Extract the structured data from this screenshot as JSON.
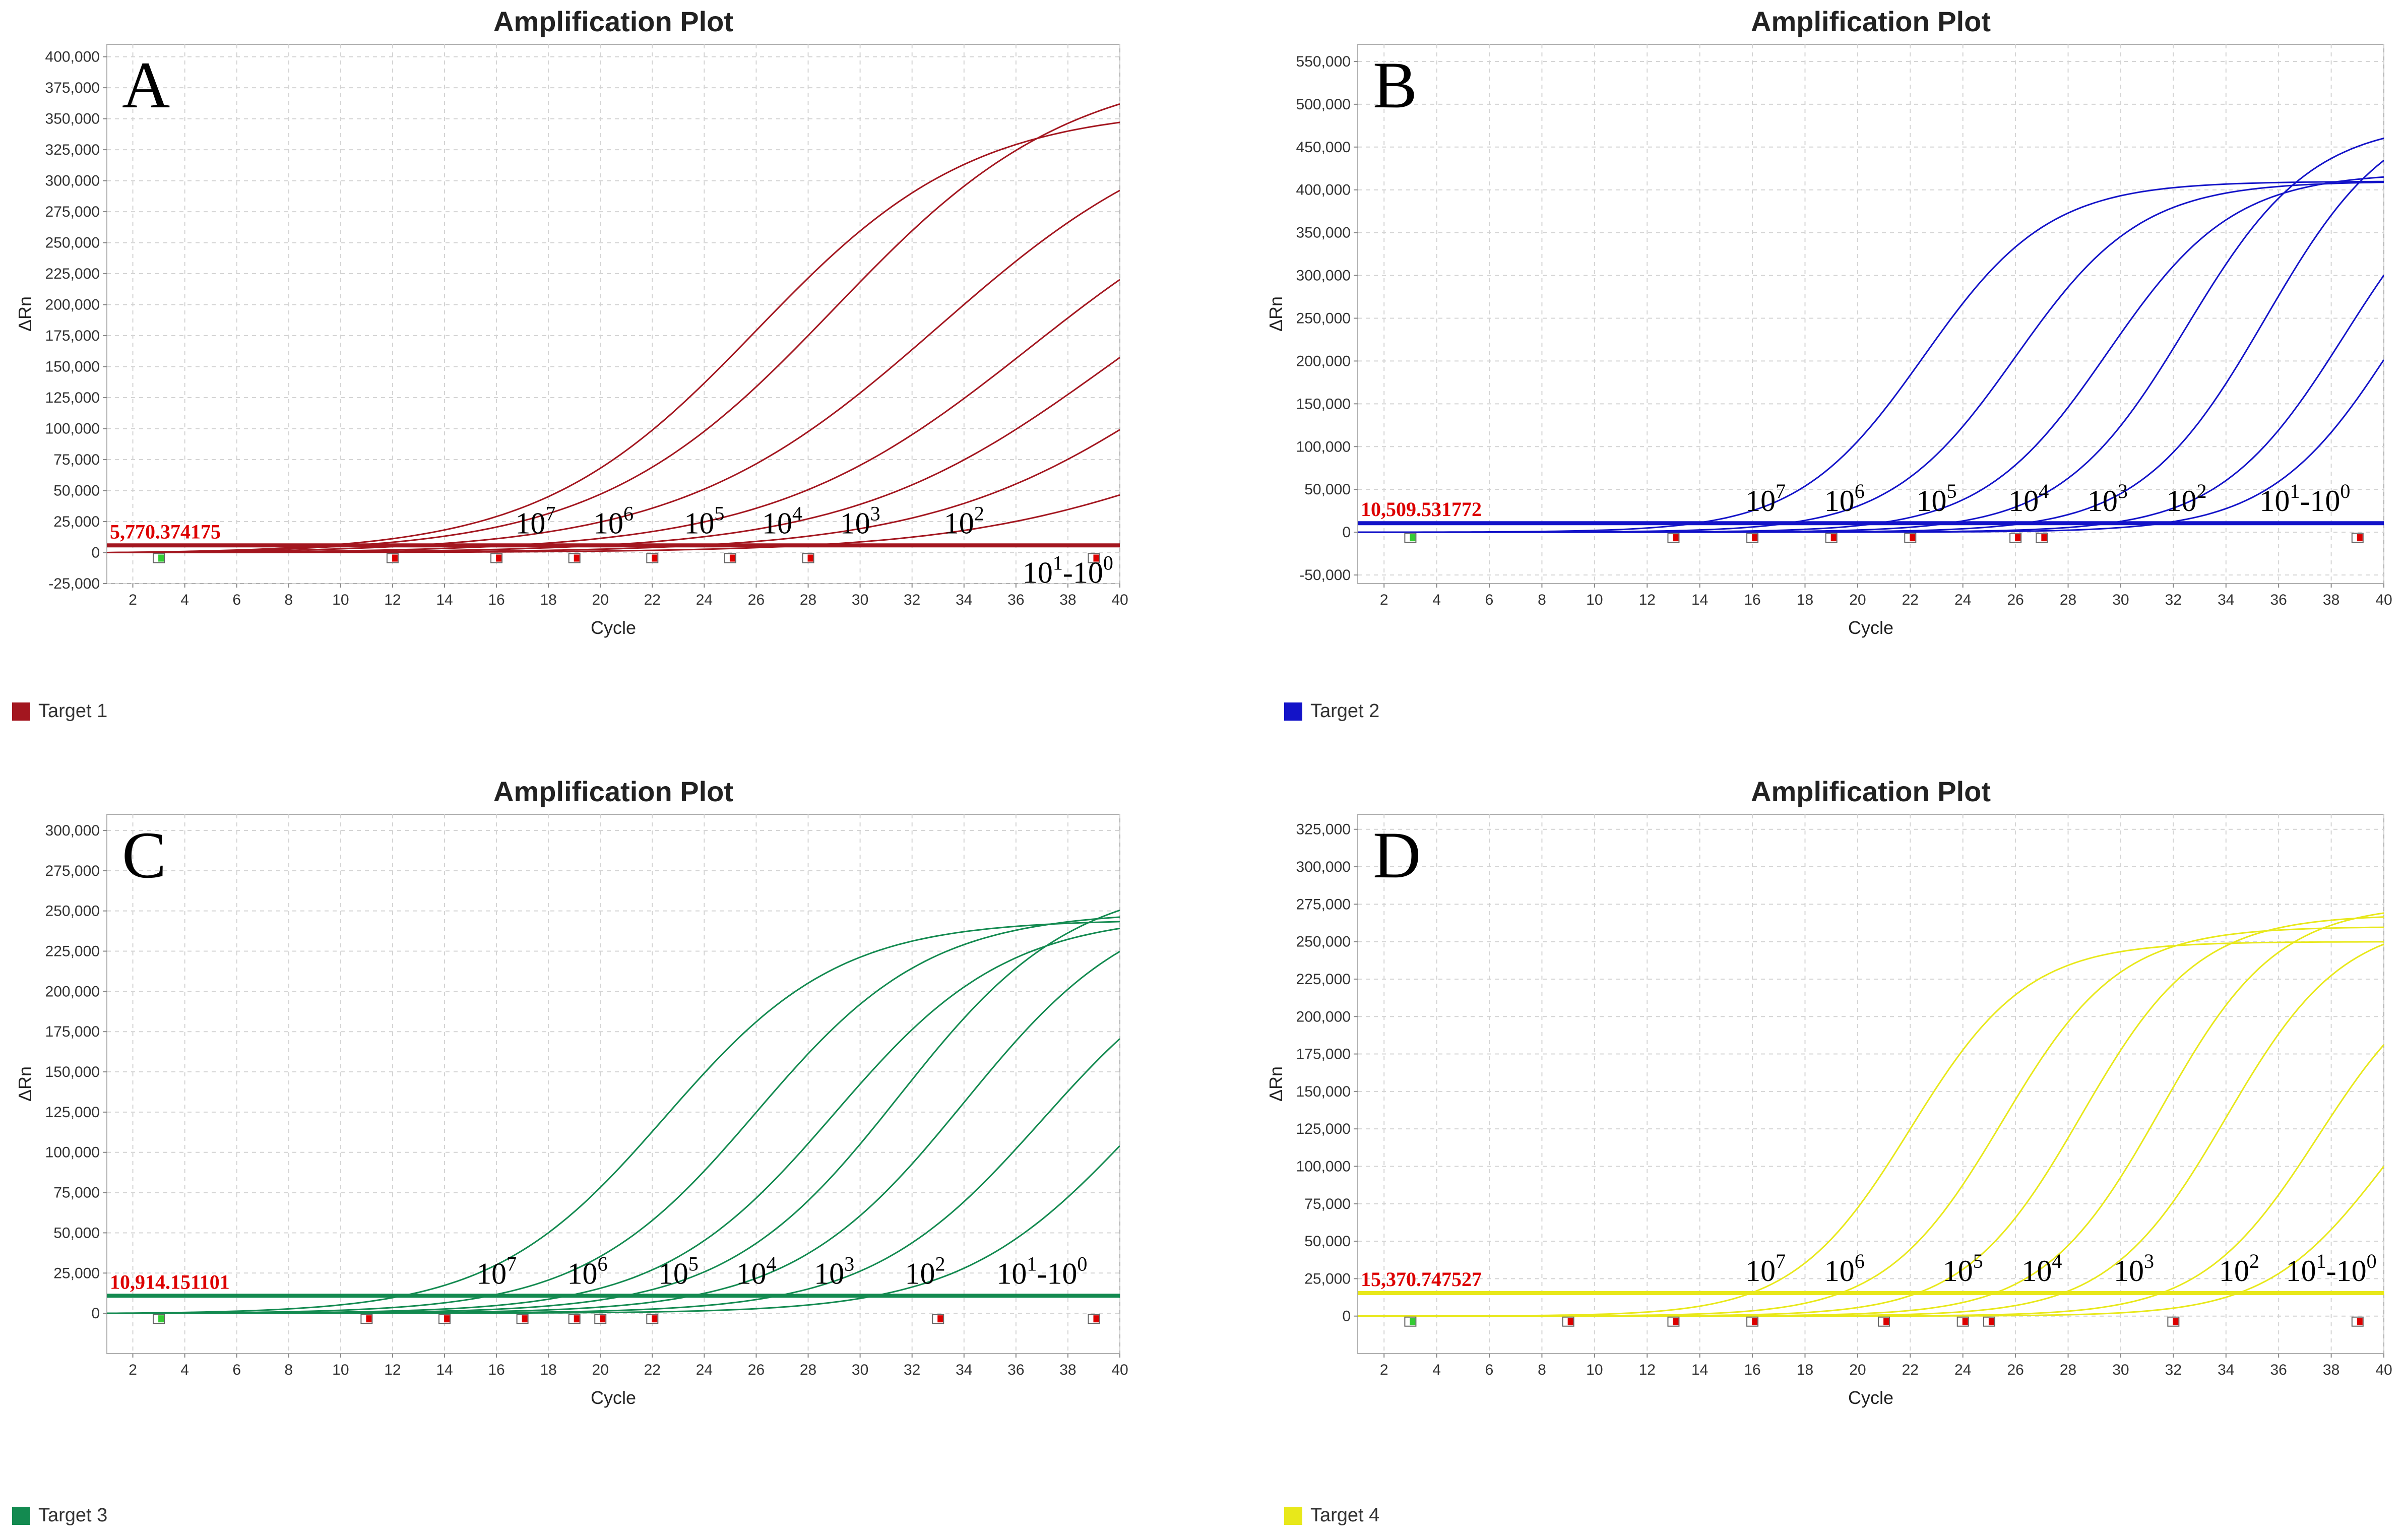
{
  "chart_data": [
    {
      "type": "line",
      "panel_letter": "A",
      "title": "Amplification Plot",
      "xlabel": "Cycle",
      "ylabel": "ΔRn",
      "xlim": [
        1,
        40
      ],
      "ylim": [
        -25000,
        410000
      ],
      "x_ticks": [
        2,
        4,
        6,
        8,
        10,
        12,
        14,
        16,
        18,
        20,
        22,
        24,
        26,
        28,
        30,
        32,
        34,
        36,
        38,
        40
      ],
      "y_ticks": [
        -25000,
        0,
        25000,
        50000,
        75000,
        100000,
        125000,
        150000,
        175000,
        200000,
        225000,
        250000,
        275000,
        300000,
        325000,
        350000,
        375000,
        400000
      ],
      "y_tick_labels": [
        "-25,000",
        "0",
        "25,000",
        "50,000",
        "75,000",
        "100,000",
        "125,000",
        "150,000",
        "175,000",
        "200,000",
        "225,000",
        "250,000",
        "275,000",
        "300,000",
        "325,000",
        "350,000",
        "375,000",
        "400,000"
      ],
      "color": "#a3161f",
      "threshold": 5770.374175,
      "threshold_label": "5,770.374175",
      "legend": "Target 1",
      "series": [
        {
          "name": "10^7",
          "ct": 17.5,
          "plateau": 360000,
          "k": 0.24,
          "mid": 26
        },
        {
          "name": "10^6",
          "ct": 20.5,
          "plateau": 395000,
          "k": 0.22,
          "mid": 29
        },
        {
          "name": "10^5",
          "ct": 24,
          "plateau": 365000,
          "k": 0.2,
          "mid": 33
        },
        {
          "name": "10^4",
          "ct": 27,
          "plateau": 330000,
          "k": 0.2,
          "mid": 36.5
        },
        {
          "name": "10^3",
          "ct": 30,
          "plateau": 300000,
          "k": 0.2,
          "mid": 39.5
        },
        {
          "name": "10^2",
          "ct": 33,
          "plateau": 280000,
          "k": 0.2,
          "mid": 43
        },
        {
          "name": "10^1-10^0",
          "ct": 36,
          "plateau": 150000,
          "k": 0.2,
          "mid": 44
        }
      ],
      "annotations": [
        {
          "base": "10",
          "exp": "7",
          "x": 17.5
        },
        {
          "base": "10",
          "exp": "6",
          "x": 20.5
        },
        {
          "base": "10",
          "exp": "5",
          "x": 24
        },
        {
          "base": "10",
          "exp": "4",
          "x": 27
        },
        {
          "base": "10",
          "exp": "3",
          "x": 30
        },
        {
          "base": "10",
          "exp": "2",
          "x": 34
        },
        {
          "base": "10",
          "exp": "1",
          "base2": "10",
          "exp2": "0",
          "x": 38
        }
      ],
      "markers": [
        {
          "x": 3,
          "color": "#33cc33"
        },
        {
          "x": 12,
          "color": "#dd0000"
        },
        {
          "x": 16,
          "color": "#dd0000"
        },
        {
          "x": 19,
          "color": "#dd0000"
        },
        {
          "x": 22,
          "color": "#dd0000"
        },
        {
          "x": 25,
          "color": "#dd0000"
        },
        {
          "x": 28,
          "color": "#dd0000"
        },
        {
          "x": 39,
          "color": "#dd0000"
        }
      ]
    },
    {
      "type": "line",
      "panel_letter": "B",
      "title": "Amplification Plot",
      "xlabel": "Cycle",
      "ylabel": "ΔRn",
      "xlim": [
        1,
        40
      ],
      "ylim": [
        -60000,
        570000
      ],
      "x_ticks": [
        2,
        4,
        6,
        8,
        10,
        12,
        14,
        16,
        18,
        20,
        22,
        24,
        26,
        28,
        30,
        32,
        34,
        36,
        38,
        40
      ],
      "y_ticks": [
        -50000,
        0,
        50000,
        100000,
        150000,
        200000,
        250000,
        300000,
        350000,
        400000,
        450000,
        500000,
        550000
      ],
      "y_tick_labels": [
        "-50,000",
        "0",
        "50,000",
        "100,000",
        "150,000",
        "200,000",
        "250,000",
        "300,000",
        "350,000",
        "400,000",
        "450,000",
        "500,000",
        "550,000"
      ],
      "color": "#1313c8",
      "threshold": 10509.531772,
      "threshold_label": "10,509.531772",
      "legend": "Target 2",
      "series": [
        {
          "name": "10^7",
          "ct": 18,
          "plateau": 410000,
          "k": 0.42,
          "mid": 22.5
        },
        {
          "name": "10^6",
          "ct": 21,
          "plateau": 410000,
          "k": 0.42,
          "mid": 26
        },
        {
          "name": "10^5",
          "ct": 24.5,
          "plateau": 420000,
          "k": 0.42,
          "mid": 29.5
        },
        {
          "name": "10^4",
          "ct": 27.5,
          "plateau": 480000,
          "k": 0.42,
          "mid": 32.5
        },
        {
          "name": "10^3",
          "ct": 30.5,
          "plateau": 500000,
          "k": 0.42,
          "mid": 35.5
        },
        {
          "name": "10^2",
          "ct": 33.5,
          "plateau": 460000,
          "k": 0.42,
          "mid": 38.5
        },
        {
          "name": "10^1-10^0",
          "ct": 36.5,
          "plateau": 450000,
          "k": 0.42,
          "mid": 40.5
        }
      ],
      "annotations": [
        {
          "base": "10",
          "exp": "7",
          "x": 16.5
        },
        {
          "base": "10",
          "exp": "6",
          "x": 19.5
        },
        {
          "base": "10",
          "exp": "5",
          "x": 23
        },
        {
          "base": "10",
          "exp": "4",
          "x": 26.5
        },
        {
          "base": "10",
          "exp": "3",
          "x": 29.5
        },
        {
          "base": "10",
          "exp": "2",
          "x": 32.5
        },
        {
          "base": "10",
          "exp": "1",
          "base2": "10",
          "exp2": "0",
          "x": 37
        }
      ],
      "markers": [
        {
          "x": 3,
          "color": "#33cc33"
        },
        {
          "x": 13,
          "color": "#dd0000"
        },
        {
          "x": 16,
          "color": "#dd0000"
        },
        {
          "x": 19,
          "color": "#dd0000"
        },
        {
          "x": 22,
          "color": "#dd0000"
        },
        {
          "x": 26,
          "color": "#dd0000"
        },
        {
          "x": 27,
          "color": "#dd0000"
        },
        {
          "x": 39,
          "color": "#dd0000"
        }
      ]
    },
    {
      "type": "line",
      "panel_letter": "C",
      "title": "Amplification Plot",
      "xlabel": "Cycle",
      "ylabel": "ΔRn",
      "xlim": [
        1,
        40
      ],
      "ylim": [
        -25000,
        310000
      ],
      "x_ticks": [
        2,
        4,
        6,
        8,
        10,
        12,
        14,
        16,
        18,
        20,
        22,
        24,
        26,
        28,
        30,
        32,
        34,
        36,
        38,
        40
      ],
      "y_ticks": [
        0,
        25000,
        50000,
        75000,
        100000,
        125000,
        150000,
        175000,
        200000,
        225000,
        250000,
        275000,
        300000
      ],
      "y_tick_labels": [
        "0",
        "25,000",
        "50,000",
        "75,000",
        "100,000",
        "125,000",
        "150,000",
        "175,000",
        "200,000",
        "225,000",
        "250,000",
        "275,000",
        "300,000"
      ],
      "color": "#138a50",
      "threshold": 10914.151101,
      "threshold_label": "10,914.151101",
      "legend": "Target 3",
      "series": [
        {
          "name": "10^7",
          "ct": 17,
          "plateau": 245000,
          "k": 0.3,
          "mid": 22.5
        },
        {
          "name": "10^6",
          "ct": 20,
          "plateau": 250000,
          "k": 0.3,
          "mid": 26
        },
        {
          "name": "10^5",
          "ct": 23,
          "plateau": 248000,
          "k": 0.3,
          "mid": 29
        },
        {
          "name": "10^4",
          "ct": 25.5,
          "plateau": 270000,
          "k": 0.3,
          "mid": 31.5
        },
        {
          "name": "10^3",
          "ct": 28,
          "plateau": 262000,
          "k": 0.3,
          "mid": 34
        },
        {
          "name": "10^2",
          "ct": 31,
          "plateau": 240000,
          "k": 0.3,
          "mid": 37
        },
        {
          "name": "10^1-10^0",
          "ct": 33.5,
          "plateau": 225000,
          "k": 0.3,
          "mid": 40.5
        }
      ],
      "annotations": [
        {
          "base": "10",
          "exp": "7",
          "x": 16
        },
        {
          "base": "10",
          "exp": "6",
          "x": 19.5
        },
        {
          "base": "10",
          "exp": "5",
          "x": 23
        },
        {
          "base": "10",
          "exp": "4",
          "x": 26
        },
        {
          "base": "10",
          "exp": "3",
          "x": 29
        },
        {
          "base": "10",
          "exp": "2",
          "x": 32.5
        },
        {
          "base": "10",
          "exp": "1",
          "base2": "10",
          "exp2": "0",
          "x": 37
        }
      ],
      "markers": [
        {
          "x": 3,
          "color": "#33cc33"
        },
        {
          "x": 11,
          "color": "#dd0000"
        },
        {
          "x": 14,
          "color": "#dd0000"
        },
        {
          "x": 17,
          "color": "#dd0000"
        },
        {
          "x": 19,
          "color": "#dd0000"
        },
        {
          "x": 20,
          "color": "#dd0000"
        },
        {
          "x": 22,
          "color": "#dd0000"
        },
        {
          "x": 33,
          "color": "#dd0000"
        },
        {
          "x": 39,
          "color": "#dd0000"
        }
      ]
    },
    {
      "type": "line",
      "panel_letter": "D",
      "title": "Amplification Plot",
      "xlabel": "Cycle",
      "ylabel": "ΔRn",
      "xlim": [
        1,
        40
      ],
      "ylim": [
        -25000,
        335000
      ],
      "x_ticks": [
        2,
        4,
        6,
        8,
        10,
        12,
        14,
        16,
        18,
        20,
        22,
        24,
        26,
        28,
        30,
        32,
        34,
        36,
        38,
        40
      ],
      "y_ticks": [
        0,
        25000,
        50000,
        75000,
        100000,
        125000,
        150000,
        175000,
        200000,
        225000,
        250000,
        275000,
        300000,
        325000
      ],
      "y_tick_labels": [
        "0",
        "25,000",
        "50,000",
        "75,000",
        "100,000",
        "125,000",
        "150,000",
        "175,000",
        "200,000",
        "225,000",
        "250,000",
        "275,000",
        "300,000",
        "325,000"
      ],
      "color": "#e8e81a",
      "threshold": 15370.747527,
      "threshold_label": "15,370.747527",
      "legend": "Target 4",
      "series": [
        {
          "name": "10^7",
          "ct": 18,
          "plateau": 250000,
          "k": 0.45,
          "mid": 22
        },
        {
          "name": "10^6",
          "ct": 21,
          "plateau": 260000,
          "k": 0.45,
          "mid": 25.5
        },
        {
          "name": "10^5",
          "ct": 24.5,
          "plateau": 268000,
          "k": 0.45,
          "mid": 28.5
        },
        {
          "name": "10^4",
          "ct": 27,
          "plateau": 275000,
          "k": 0.45,
          "mid": 31.5
        },
        {
          "name": "10^3",
          "ct": 30,
          "plateau": 265000,
          "k": 0.45,
          "mid": 34
        },
        {
          "name": "10^2",
          "ct": 33,
          "plateau": 240000,
          "k": 0.45,
          "mid": 37.5
        },
        {
          "name": "10^1-10^0",
          "ct": 36,
          "plateau": 200000,
          "k": 0.45,
          "mid": 40
        }
      ],
      "annotations": [
        {
          "base": "10",
          "exp": "7",
          "x": 16.5
        },
        {
          "base": "10",
          "exp": "6",
          "x": 19.5
        },
        {
          "base": "10",
          "exp": "5",
          "x": 24
        },
        {
          "base": "10",
          "exp": "4",
          "x": 27
        },
        {
          "base": "10",
          "exp": "3",
          "x": 30.5
        },
        {
          "base": "10",
          "exp": "2",
          "x": 34.5
        },
        {
          "base": "10",
          "exp": "1",
          "base2": "10",
          "exp2": "0",
          "x": 38
        }
      ],
      "markers": [
        {
          "x": 3,
          "color": "#33cc33"
        },
        {
          "x": 9,
          "color": "#dd0000"
        },
        {
          "x": 13,
          "color": "#dd0000"
        },
        {
          "x": 16,
          "color": "#dd0000"
        },
        {
          "x": 21,
          "color": "#dd0000"
        },
        {
          "x": 24,
          "color": "#dd0000"
        },
        {
          "x": 25,
          "color": "#dd0000"
        },
        {
          "x": 32,
          "color": "#dd0000"
        },
        {
          "x": 39,
          "color": "#dd0000"
        }
      ]
    }
  ]
}
